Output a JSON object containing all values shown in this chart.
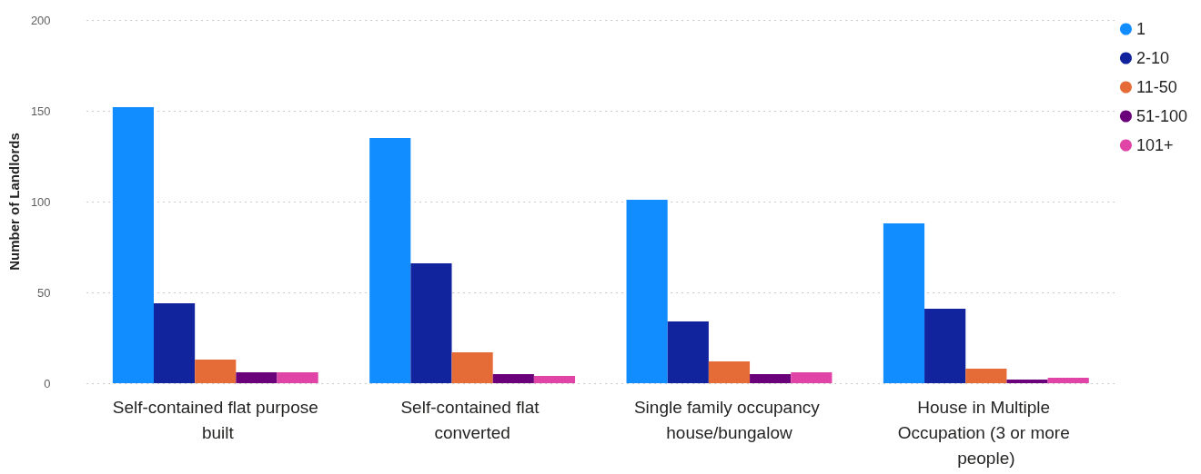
{
  "chart_data": {
    "type": "bar",
    "ylabel": "Number of Landlords",
    "categories": [
      "Self-contained flat purpose built",
      "Self-contained flat converted",
      "Single family occupancy house/bungalow",
      "House in Multiple Occupation (3 or more people)"
    ],
    "series": [
      {
        "name": "1",
        "color": "#118dff",
        "values": [
          152,
          135,
          101,
          88
        ]
      },
      {
        "name": "2-10",
        "color": "#12239e",
        "values": [
          44,
          66,
          34,
          41
        ]
      },
      {
        "name": "11-50",
        "color": "#e66c37",
        "values": [
          13,
          17,
          12,
          8
        ]
      },
      {
        "name": "51-100",
        "color": "#6b007b",
        "values": [
          6,
          5,
          5,
          2
        ]
      },
      {
        "name": "101+",
        "color": "#e044a7",
        "values": [
          6,
          4,
          6,
          3
        ]
      }
    ],
    "ylim": [
      0,
      200
    ],
    "yticks": [
      0,
      50,
      100,
      150,
      200
    ],
    "grid": "y",
    "legend": "top right"
  }
}
